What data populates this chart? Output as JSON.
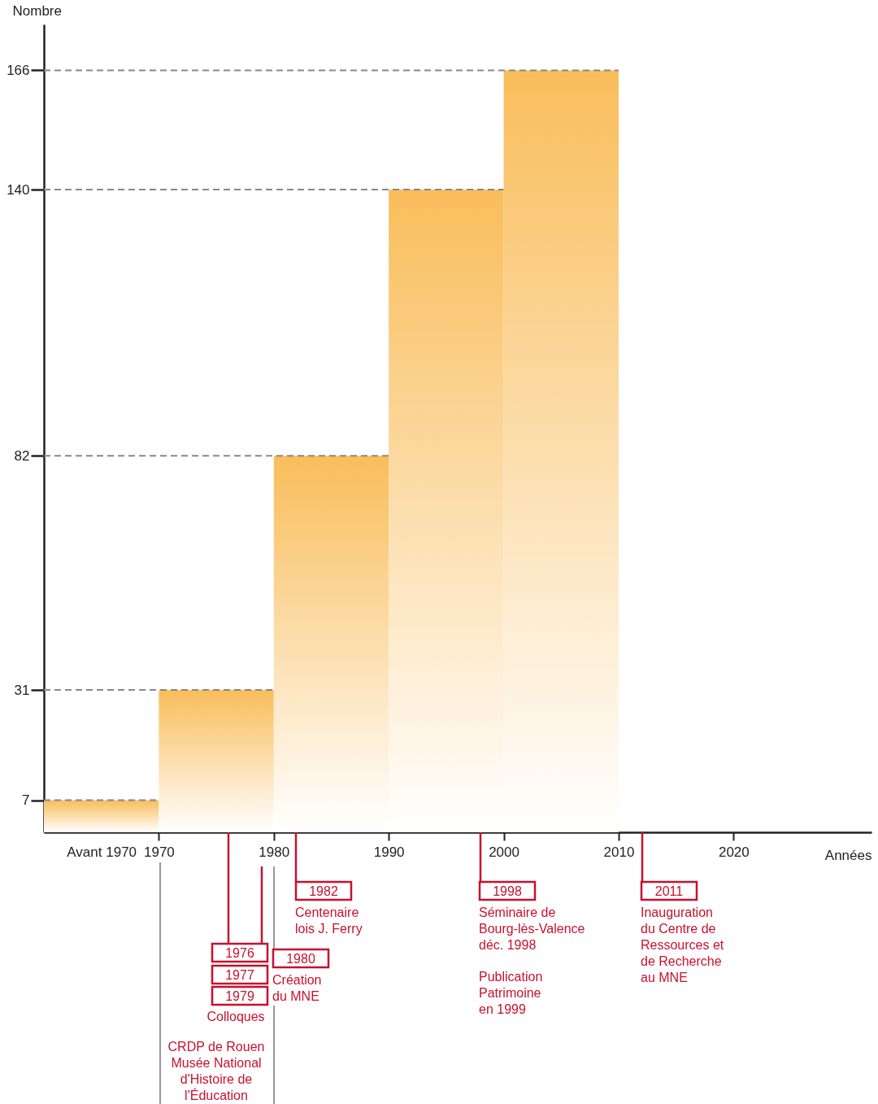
{
  "chart_data": {
    "type": "histogram",
    "ylabel": "Nombre",
    "xlabel": "Années",
    "bins": [
      1960,
      1970,
      1980,
      1990,
      2000,
      2010
    ],
    "values": [
      7,
      31,
      82,
      140,
      166
    ],
    "color": "#f9bd5b",
    "xlim": [
      1960,
      2032
    ],
    "ylim": [
      0,
      176
    ],
    "xticks": [
      {
        "value": 1965,
        "label": "Avant 1970"
      },
      1970,
      1980,
      1990,
      2000,
      2010,
      2020
    ],
    "yticks": [
      7,
      31,
      82,
      140,
      166
    ],
    "ref_lines": [
      {
        "axis": "y",
        "value": 7,
        "color": "#888888",
        "line_style": "dashed"
      },
      {
        "axis": "y",
        "value": 31,
        "color": "#888888",
        "line_style": "dashed"
      },
      {
        "axis": "y",
        "value": 82,
        "color": "#888888",
        "line_style": "dashed"
      },
      {
        "axis": "y",
        "value": 140,
        "color": "#888888",
        "line_style": "dashed"
      },
      {
        "axis": "y",
        "value": 166,
        "color": "#888888",
        "line_style": "dashed"
      }
    ],
    "annotations": [
      "1976",
      "1977",
      "1979",
      "Colloques",
      "1980",
      "Création du MNE",
      "1982",
      "Centenaire lois J. Ferry",
      "1998",
      "Séminaire de Bourg-lès-Valence déc. 1998",
      "Publication Patrimoine en 1999",
      "2011",
      "Inauguration du Centre de Ressources et de Recherche au MNE",
      "CRDP de Rouen Musée National d'Histoire de l'Éducation"
    ]
  }
}
